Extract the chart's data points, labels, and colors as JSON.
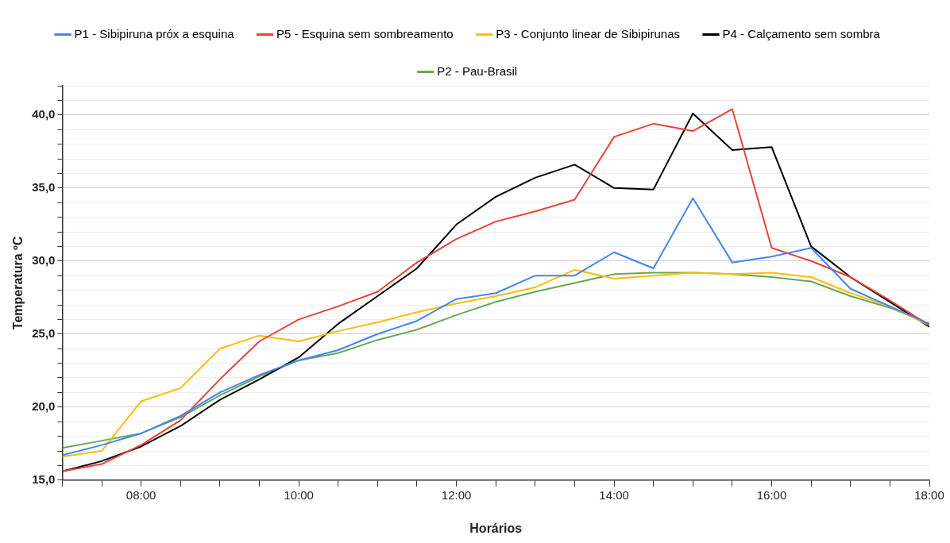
{
  "chart_data": {
    "type": "line",
    "xlabel": "Horários",
    "ylabel": "Temperatura ºC",
    "x": [
      7,
      7.5,
      8,
      8.5,
      9,
      9.5,
      10,
      10.5,
      11,
      11.5,
      12,
      12.5,
      13,
      13.5,
      14,
      14.5,
      15,
      15.5,
      16,
      16.5,
      17,
      17.5,
      18
    ],
    "series": [
      {
        "name": "P1 - Sibipiruna próx a esquina",
        "color": "#4285f4",
        "values": [
          16.7,
          17.4,
          18.2,
          19.4,
          21.0,
          22.2,
          23.2,
          23.9,
          25.0,
          25.9,
          27.4,
          27.8,
          29.0,
          29.0,
          30.6,
          29.5,
          34.3,
          29.9,
          30.3,
          30.9,
          28.1,
          26.9,
          25.7
        ]
      },
      {
        "name": "P5 - Esquina sem sombreamento",
        "color": "#ea4335",
        "values": [
          15.6,
          16.1,
          17.4,
          19.1,
          21.9,
          24.5,
          26.0,
          26.9,
          27.9,
          29.9,
          31.5,
          32.7,
          33.4,
          34.2,
          38.5,
          39.4,
          38.9,
          40.4,
          30.9,
          30.0,
          28.9,
          27.3,
          25.6
        ]
      },
      {
        "name": "P3 - Conjunto linear de Sibipirunas",
        "color": "#fbbc04",
        "values": [
          16.6,
          17.0,
          20.4,
          21.3,
          24.0,
          24.9,
          24.5,
          25.2,
          25.8,
          26.5,
          27.1,
          27.6,
          28.2,
          29.4,
          28.8,
          29.0,
          29.2,
          29.1,
          29.2,
          28.9,
          27.8,
          26.9,
          25.6
        ]
      },
      {
        "name": "P4 - Calçamento sem sombra",
        "color": "#000000",
        "values": [
          15.6,
          16.3,
          17.3,
          18.7,
          20.5,
          21.9,
          23.4,
          25.7,
          27.6,
          29.5,
          32.5,
          34.4,
          35.7,
          36.6,
          35.0,
          34.9,
          40.1,
          37.6,
          37.8,
          31.0,
          28.9,
          27.2,
          25.5
        ]
      },
      {
        "name": "P2 - Pau-Brasil",
        "color": "#6aa84f",
        "values": [
          17.2,
          17.7,
          18.2,
          19.3,
          20.8,
          22.1,
          23.2,
          23.7,
          24.6,
          25.3,
          26.3,
          27.2,
          27.9,
          28.5,
          29.1,
          29.2,
          29.2,
          29.1,
          28.9,
          28.6,
          27.6,
          26.8,
          25.7
        ]
      }
    ],
    "xlim": [
      7,
      18
    ],
    "xticks": [
      {
        "value": 7,
        "label": null
      },
      {
        "value": 7.5,
        "label": null
      },
      {
        "value": 8,
        "label": "08:00"
      },
      {
        "value": 8.5,
        "label": null
      },
      {
        "value": 9,
        "label": null
      },
      {
        "value": 9.5,
        "label": null
      },
      {
        "value": 10,
        "label": "10:00"
      },
      {
        "value": 10.5,
        "label": null
      },
      {
        "value": 11,
        "label": null
      },
      {
        "value": 11.5,
        "label": null
      },
      {
        "value": 12,
        "label": "12:00"
      },
      {
        "value": 12.5,
        "label": null
      },
      {
        "value": 13,
        "label": null
      },
      {
        "value": 13.5,
        "label": null
      },
      {
        "value": 14,
        "label": "14:00"
      },
      {
        "value": 14.5,
        "label": null
      },
      {
        "value": 15,
        "label": null
      },
      {
        "value": 15.5,
        "label": null
      },
      {
        "value": 16,
        "label": "16:00"
      },
      {
        "value": 16.5,
        "label": null
      },
      {
        "value": 17,
        "label": null
      },
      {
        "value": 17.5,
        "label": null
      },
      {
        "value": 18,
        "label": "18:00"
      }
    ],
    "ylim": [
      15,
      42
    ],
    "yticks": [
      {
        "value": 15,
        "label": "15,0"
      },
      {
        "value": 16,
        "label": null
      },
      {
        "value": 17,
        "label": null
      },
      {
        "value": 18,
        "label": null
      },
      {
        "value": 19,
        "label": null
      },
      {
        "value": 20,
        "label": "20,0"
      },
      {
        "value": 21,
        "label": null
      },
      {
        "value": 22,
        "label": null
      },
      {
        "value": 23,
        "label": null
      },
      {
        "value": 24,
        "label": null
      },
      {
        "value": 25,
        "label": "25,0"
      },
      {
        "value": 26,
        "label": null
      },
      {
        "value": 27,
        "label": null
      },
      {
        "value": 28,
        "label": null
      },
      {
        "value": 29,
        "label": null
      },
      {
        "value": 30,
        "label": "30,0"
      },
      {
        "value": 31,
        "label": null
      },
      {
        "value": 32,
        "label": null
      },
      {
        "value": 33,
        "label": null
      },
      {
        "value": 34,
        "label": null
      },
      {
        "value": 35,
        "label": "35,0"
      },
      {
        "value": 36,
        "label": null
      },
      {
        "value": 37,
        "label": null
      },
      {
        "value": 38,
        "label": null
      },
      {
        "value": 39,
        "label": null
      },
      {
        "value": 40,
        "label": "40,0"
      },
      {
        "value": 41,
        "label": null
      },
      {
        "value": 42,
        "label": null
      }
    ],
    "grid": "y",
    "legend": "top",
    "marker": "none",
    "line_style": "solid"
  }
}
